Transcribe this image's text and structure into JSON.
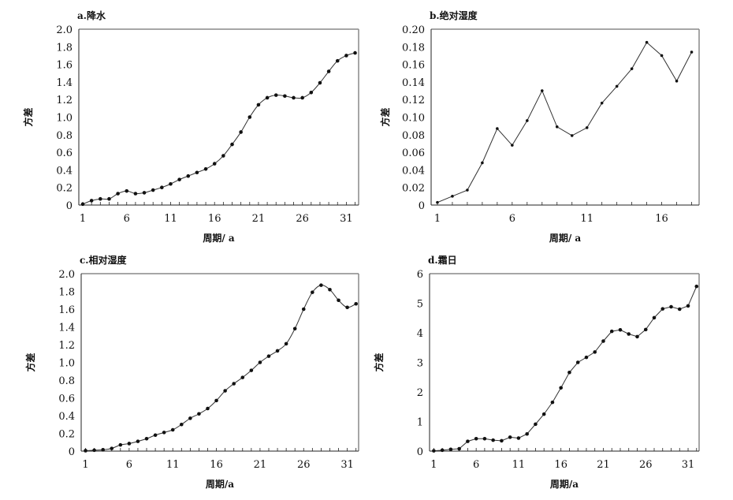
{
  "chart_data": [
    {
      "type": "line",
      "title": "a.降水",
      "xlabel": "周期/ a",
      "ylabel": "方差",
      "x": [
        1,
        2,
        3,
        4,
        5,
        6,
        7,
        8,
        9,
        10,
        11,
        12,
        13,
        14,
        15,
        16,
        17,
        18,
        19,
        20,
        21,
        22,
        23,
        24,
        25,
        26,
        27,
        28,
        29,
        30,
        31,
        32
      ],
      "values": [
        0.01,
        0.05,
        0.07,
        0.07,
        0.13,
        0.16,
        0.13,
        0.14,
        0.17,
        0.2,
        0.24,
        0.29,
        0.33,
        0.37,
        0.41,
        0.47,
        0.56,
        0.69,
        0.83,
        1.0,
        1.14,
        1.22,
        1.25,
        1.24,
        1.22,
        1.22,
        1.28,
        1.39,
        1.52,
        1.64,
        1.7,
        1.73
      ],
      "ylim": [
        0,
        2.0
      ],
      "yticks": [
        "0",
        "0.2",
        "0.4",
        "0.6",
        "0.8",
        "1.0",
        "1.2",
        "1.4",
        "1.6",
        "1.8",
        "2.0"
      ],
      "xticks": [
        "1",
        "6",
        "11",
        "16",
        "21",
        "26",
        "31"
      ],
      "xlim": [
        0.55,
        32.4
      ],
      "smooth": true,
      "grid": false
    },
    {
      "type": "line",
      "title": "b.绝对湿度",
      "xlabel": "周期/ a",
      "ylabel": "方差",
      "x": [
        1,
        2,
        3,
        4,
        5,
        6,
        7,
        8,
        9,
        10,
        11,
        12,
        13,
        14,
        15,
        16,
        17,
        18
      ],
      "values": [
        0.003,
        0.01,
        0.017,
        0.048,
        0.087,
        0.068,
        0.096,
        0.13,
        0.089,
        0.079,
        0.088,
        0.116,
        0.135,
        0.155,
        0.185,
        0.17,
        0.141,
        0.174
      ],
      "ylim": [
        0,
        0.2
      ],
      "yticks": [
        "0",
        "0.02",
        "0.04",
        "0.06",
        "0.08",
        "0.10",
        "0.12",
        "0.14",
        "0.16",
        "0.18",
        "0.20"
      ],
      "xticks": [
        "1",
        "6",
        "11",
        "16"
      ],
      "xlim": [
        0.58,
        18.5
      ],
      "smooth": false,
      "grid": false
    },
    {
      "type": "line",
      "title": "c.相对湿度",
      "xlabel": "周期/a",
      "ylabel": "方差",
      "x": [
        1,
        2,
        3,
        4,
        5,
        6,
        7,
        8,
        9,
        10,
        11,
        12,
        13,
        14,
        15,
        16,
        17,
        18,
        19,
        20,
        21,
        22,
        23,
        24,
        25,
        26,
        27,
        28,
        29,
        30,
        31,
        32
      ],
      "values": [
        0.005,
        0.01,
        0.015,
        0.03,
        0.07,
        0.085,
        0.11,
        0.14,
        0.18,
        0.21,
        0.24,
        0.3,
        0.37,
        0.42,
        0.48,
        0.57,
        0.68,
        0.76,
        0.83,
        0.91,
        1.0,
        1.07,
        1.13,
        1.21,
        1.38,
        1.6,
        1.79,
        1.87,
        1.82,
        1.7,
        1.62,
        1.66
      ],
      "ylim": [
        0,
        2.0
      ],
      "yticks": [
        "0",
        "0.2",
        "0.4",
        "0.6",
        "0.8",
        "1.0",
        "1.2",
        "1.4",
        "1.6",
        "1.8",
        "2.0"
      ],
      "xticks": [
        "1",
        "6",
        "11",
        "16",
        "21",
        "26",
        "31"
      ],
      "xlim": [
        0.5,
        32.3
      ],
      "smooth": true,
      "grid": false
    },
    {
      "type": "line",
      "title": "d.霜日",
      "xlabel": "周期/a",
      "ylabel": "方差",
      "x": [
        1,
        2,
        3,
        4,
        5,
        6,
        7,
        8,
        9,
        10,
        11,
        12,
        13,
        14,
        15,
        16,
        17,
        18,
        19,
        20,
        21,
        22,
        23,
        24,
        25,
        26,
        27,
        28,
        29,
        30,
        31,
        32
      ],
      "values": [
        0.01,
        0.03,
        0.06,
        0.08,
        0.33,
        0.42,
        0.42,
        0.37,
        0.35,
        0.47,
        0.44,
        0.58,
        0.91,
        1.25,
        1.65,
        2.14,
        2.66,
        3.0,
        3.17,
        3.35,
        3.72,
        4.05,
        4.1,
        3.96,
        3.87,
        4.11,
        4.51,
        4.81,
        4.88,
        4.8,
        4.91,
        5.57
      ],
      "ylim": [
        0,
        6
      ],
      "yticks": [
        "0",
        "1",
        "2",
        "3",
        "4",
        "5",
        "6"
      ],
      "xticks": [
        "1",
        "6",
        "11",
        "16",
        "21",
        "26",
        "31"
      ],
      "xlim": [
        0.5,
        32.3
      ],
      "smooth": false,
      "grid": false
    }
  ]
}
